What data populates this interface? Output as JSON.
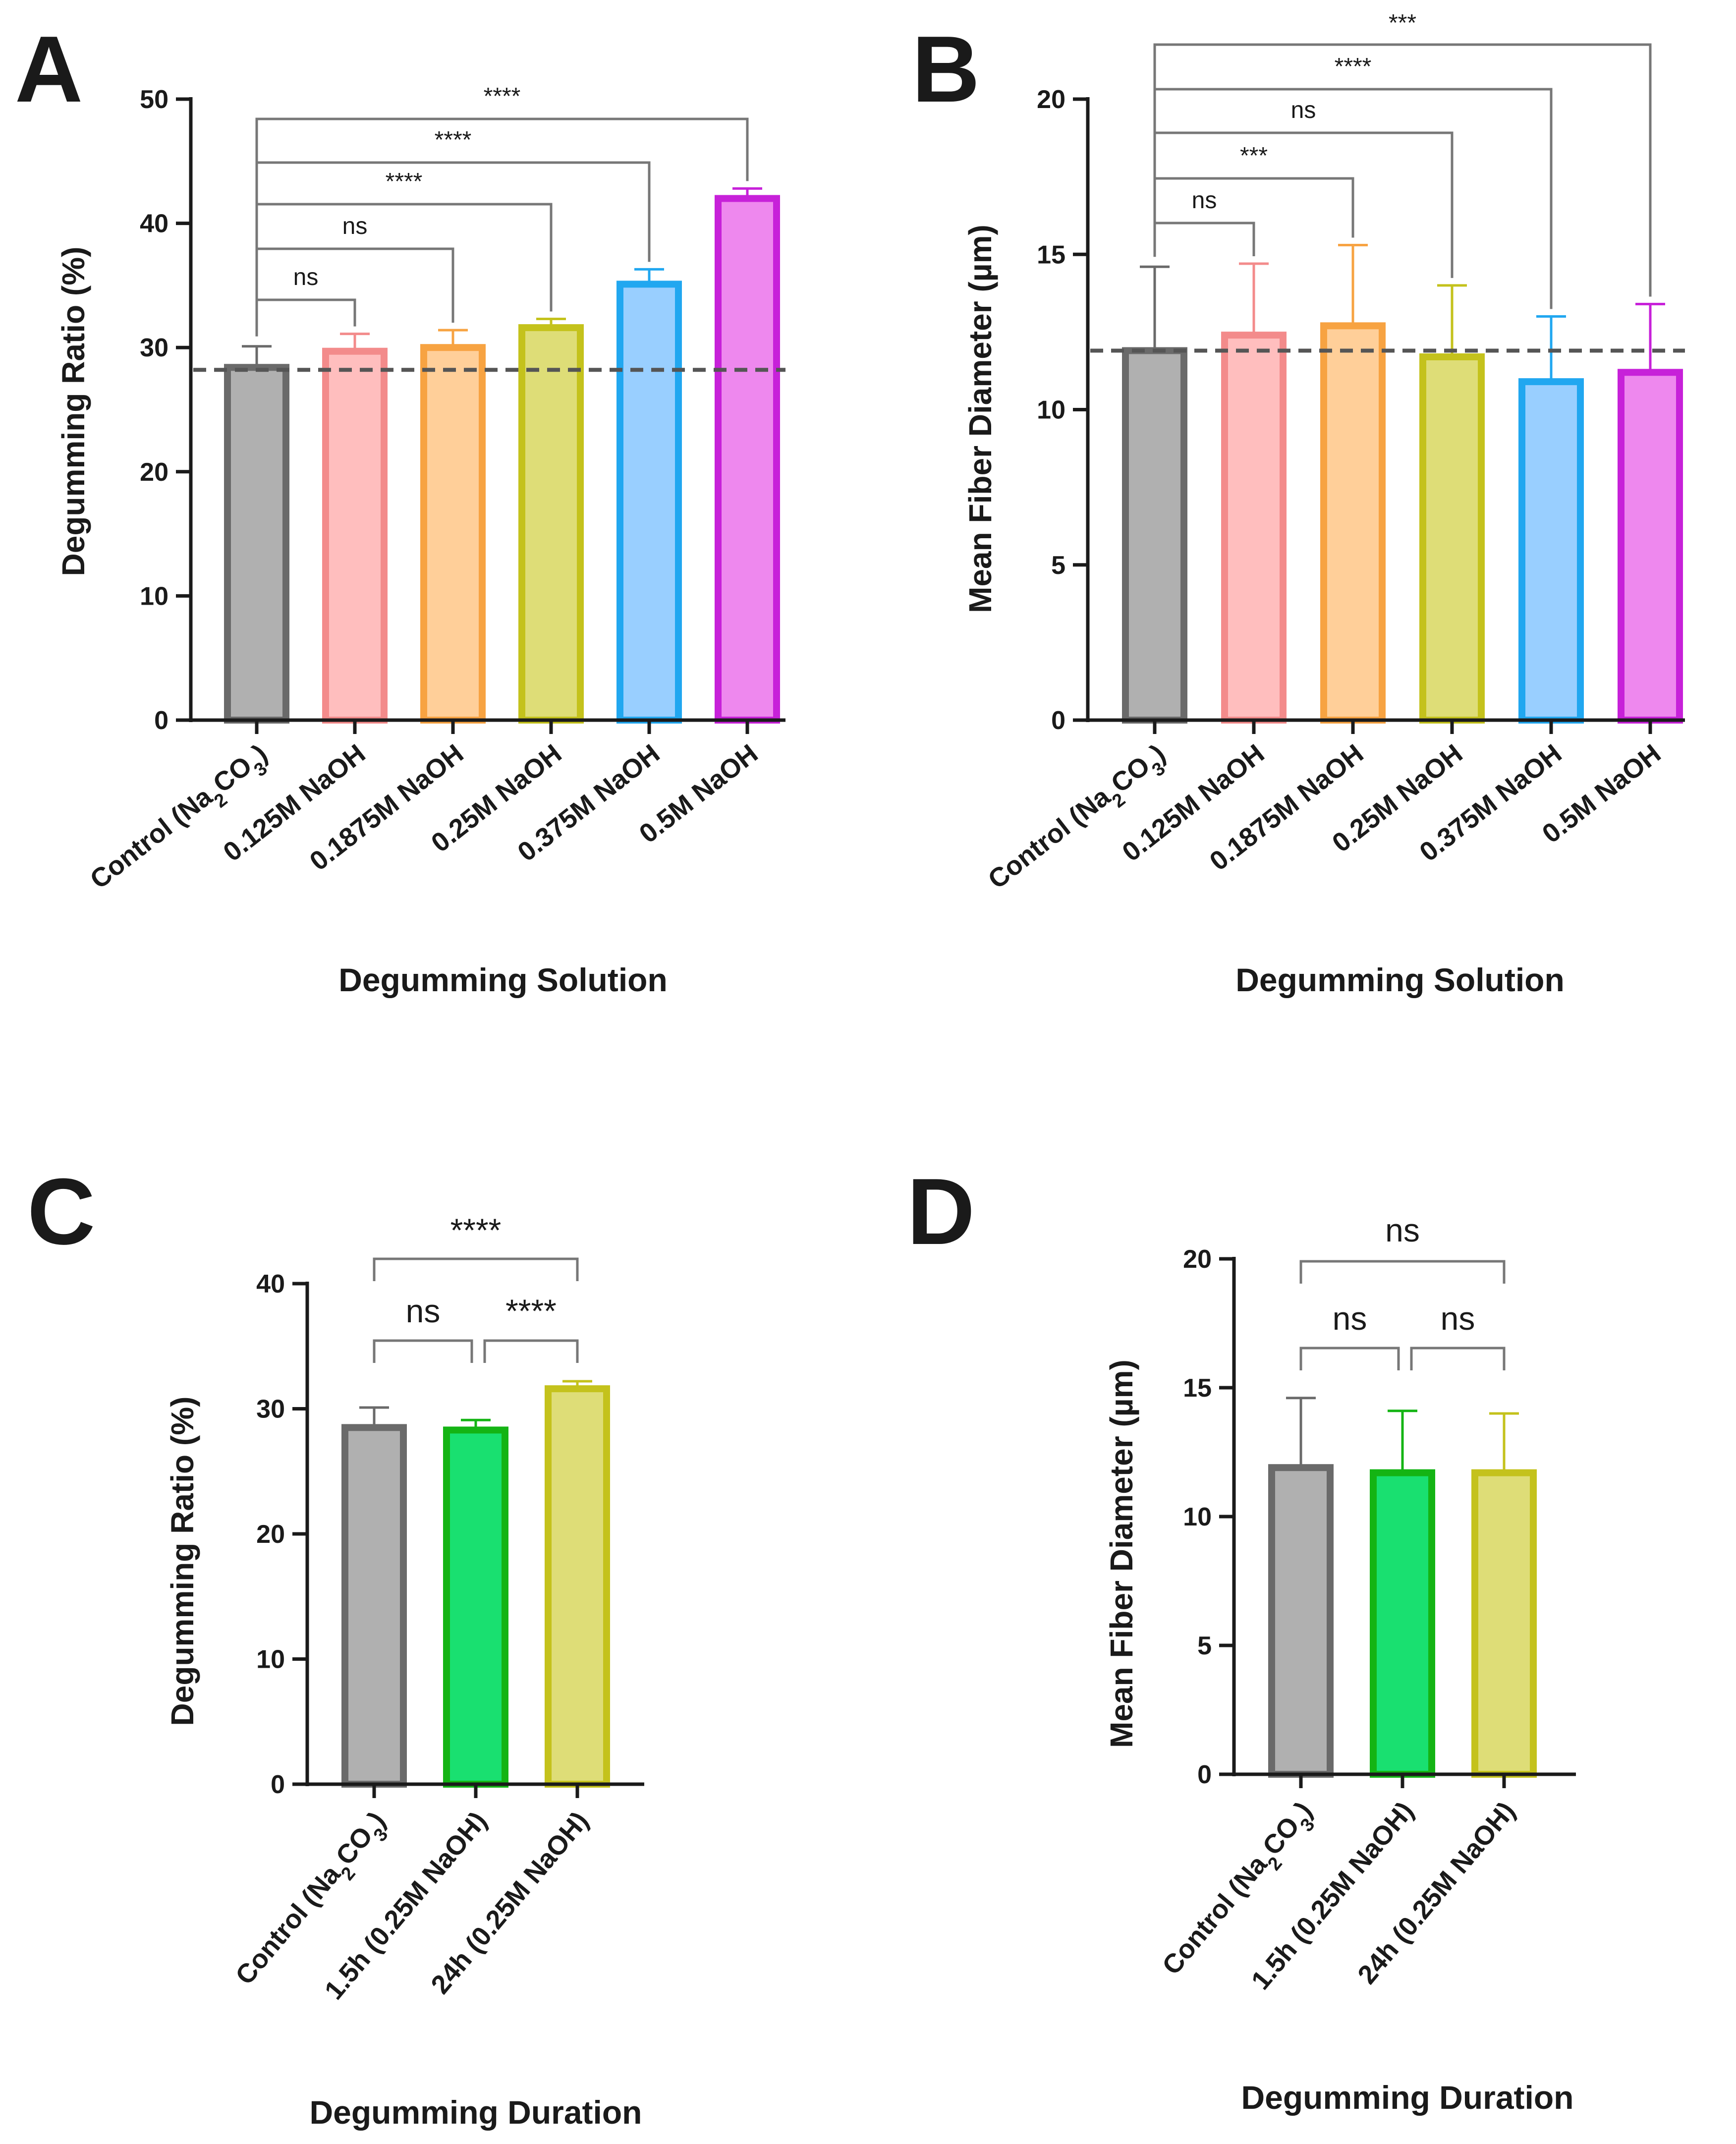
{
  "chart_data": [
    {
      "panel": "A",
      "type": "bar",
      "title": "",
      "xlabel": "Degumming Solution",
      "ylabel": "Degumming Ratio (%)",
      "ylim": [
        0,
        50
      ],
      "yticks": [
        "0",
        "10",
        "20",
        "30",
        "40",
        "50"
      ],
      "categories": [
        "Control (Na2CO3)",
        "0.125M NaOH",
        "0.1875M NaOH",
        "0.25M NaOH",
        "0.375M NaOH",
        "0.5M NaOH"
      ],
      "values": [
        28.4,
        29.7,
        30.0,
        31.6,
        35.1,
        42.0
      ],
      "errors": [
        1.7,
        1.4,
        1.4,
        0.7,
        1.2,
        0.8
      ],
      "fill_colors": [
        "#b0b0b0",
        "#ffbebe",
        "#ffcf99",
        "#dedd77",
        "#99cfff",
        "#ee88ee"
      ],
      "edge_colors": [
        "#6a6a6a",
        "#f38b8b",
        "#f7a342",
        "#c4c21c",
        "#21a7f0",
        "#c721d9"
      ],
      "reference_line": 28.2,
      "significance": [
        {
          "from": 0,
          "to": 1,
          "label": "ns"
        },
        {
          "from": 0,
          "to": 2,
          "label": "ns"
        },
        {
          "from": 0,
          "to": 3,
          "label": "****"
        },
        {
          "from": 0,
          "to": 4,
          "label": "****"
        },
        {
          "from": 0,
          "to": 5,
          "label": "****"
        }
      ]
    },
    {
      "panel": "B",
      "type": "bar",
      "title": "",
      "xlabel": "Degumming Solution",
      "ylabel": "Mean Fiber Diameter (µm)",
      "ylim": [
        0,
        20
      ],
      "yticks": [
        "0",
        "5",
        "10",
        "15",
        "20"
      ],
      "categories": [
        "Control (Na2CO3)",
        "0.125M NaOH",
        "0.1875M NaOH",
        "0.25M NaOH",
        "0.375M NaOH",
        "0.5M NaOH"
      ],
      "values": [
        11.9,
        12.4,
        12.7,
        11.7,
        10.9,
        11.2
      ],
      "errors": [
        2.7,
        2.3,
        2.6,
        2.3,
        2.1,
        2.2
      ],
      "fill_colors": [
        "#b0b0b0",
        "#ffbebe",
        "#ffcf99",
        "#dedd77",
        "#99cfff",
        "#ee88ee"
      ],
      "edge_colors": [
        "#6a6a6a",
        "#f38b8b",
        "#f7a342",
        "#c4c21c",
        "#21a7f0",
        "#c721d9"
      ],
      "reference_line": 11.9,
      "significance": [
        {
          "from": 0,
          "to": 1,
          "label": "ns"
        },
        {
          "from": 0,
          "to": 2,
          "label": "***"
        },
        {
          "from": 0,
          "to": 3,
          "label": "ns"
        },
        {
          "from": 0,
          "to": 4,
          "label": "****"
        },
        {
          "from": 0,
          "to": 5,
          "label": "***"
        }
      ]
    },
    {
      "panel": "C",
      "type": "bar",
      "title": "",
      "xlabel": "Degumming Duration",
      "ylabel": "Degumming Ratio (%)",
      "ylim": [
        0,
        40
      ],
      "yticks": [
        "0",
        "10",
        "20",
        "30",
        "40"
      ],
      "categories": [
        "Control (Na2CO3)",
        "1.5h (0.25M NaOH)",
        "24h (0.25M NaOH)"
      ],
      "values": [
        28.5,
        28.3,
        31.6
      ],
      "errors": [
        1.6,
        0.8,
        0.6
      ],
      "fill_colors": [
        "#b0b0b0",
        "#19e070",
        "#dedd77"
      ],
      "edge_colors": [
        "#6a6a6a",
        "#14b414",
        "#c4c21c"
      ],
      "reference_line": null,
      "significance": [
        {
          "from": 0,
          "to": 1,
          "label": "ns"
        },
        {
          "from": 1,
          "to": 2,
          "label": "****"
        },
        {
          "from": 0,
          "to": 2,
          "label": "****"
        }
      ]
    },
    {
      "panel": "D",
      "type": "bar",
      "title": "",
      "xlabel": "Degumming Duration",
      "ylabel": "Mean Fiber Diameter (µm)",
      "ylim": [
        0,
        20
      ],
      "yticks": [
        "0",
        "5",
        "10",
        "15",
        "20"
      ],
      "categories": [
        "Control (Na2CO3)",
        "1.5h (0.25M NaOH)",
        "24h (0.25M NaOH)"
      ],
      "values": [
        11.9,
        11.7,
        11.7
      ],
      "errors": [
        2.7,
        2.4,
        2.3
      ],
      "fill_colors": [
        "#b0b0b0",
        "#19e070",
        "#dedd77"
      ],
      "edge_colors": [
        "#6a6a6a",
        "#14b414",
        "#c4c21c"
      ],
      "reference_line": null,
      "significance": [
        {
          "from": 0,
          "to": 1,
          "label": "ns"
        },
        {
          "from": 1,
          "to": 2,
          "label": "ns"
        },
        {
          "from": 0,
          "to": 2,
          "label": "ns"
        }
      ]
    }
  ]
}
